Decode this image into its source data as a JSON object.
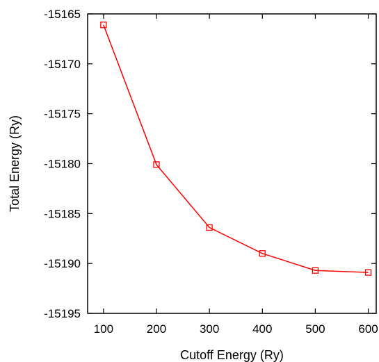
{
  "chart_data": {
    "type": "line",
    "title": "",
    "xlabel": "Cutoff Energy (Ry)",
    "ylabel": "Total Energy (Ry)",
    "xlim": [
      70,
      615
    ],
    "ylim": [
      -15195,
      -15165
    ],
    "xticks": [
      100,
      200,
      300,
      400,
      500,
      600
    ],
    "yticks": [
      -15165,
      -15170,
      -15175,
      -15180,
      -15185,
      -15190,
      -15195
    ],
    "grid": false,
    "legend": "none",
    "series": [
      {
        "color": "#ff0000",
        "marker": "open-square",
        "x": [
          100,
          200,
          300,
          400,
          500,
          600
        ],
        "y": [
          -15166.1,
          -15180.1,
          -15186.4,
          -15189.0,
          -15190.7,
          -15190.9
        ]
      }
    ]
  }
}
